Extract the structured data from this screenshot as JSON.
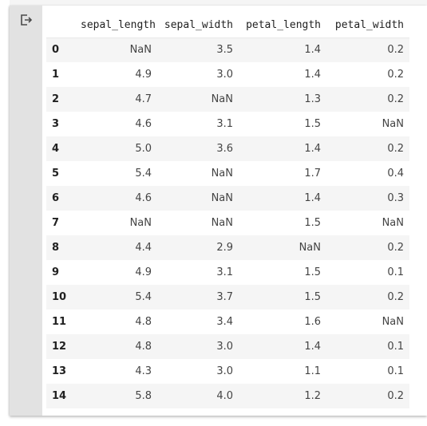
{
  "output_icon": "output-arrow-icon",
  "table": {
    "columns": [
      "",
      "sepal_length",
      "sepal_width",
      "petal_length",
      "petal_width"
    ],
    "rows": [
      [
        "0",
        "NaN",
        "3.5",
        "1.4",
        "0.2"
      ],
      [
        "1",
        "4.9",
        "3.0",
        "1.4",
        "0.2"
      ],
      [
        "2",
        "4.7",
        "NaN",
        "1.3",
        "0.2"
      ],
      [
        "3",
        "4.6",
        "3.1",
        "1.5",
        "NaN"
      ],
      [
        "4",
        "5.0",
        "3.6",
        "1.4",
        "0.2"
      ],
      [
        "5",
        "5.4",
        "NaN",
        "1.7",
        "0.4"
      ],
      [
        "6",
        "4.6",
        "NaN",
        "1.4",
        "0.3"
      ],
      [
        "7",
        "NaN",
        "NaN",
        "1.5",
        "NaN"
      ],
      [
        "8",
        "4.4",
        "2.9",
        "NaN",
        "0.2"
      ],
      [
        "9",
        "4.9",
        "3.1",
        "1.5",
        "0.1"
      ],
      [
        "10",
        "5.4",
        "3.7",
        "1.5",
        "0.2"
      ],
      [
        "11",
        "4.8",
        "3.4",
        "1.6",
        "NaN"
      ],
      [
        "12",
        "4.8",
        "3.0",
        "1.4",
        "0.1"
      ],
      [
        "13",
        "4.3",
        "3.0",
        "1.1",
        "0.1"
      ],
      [
        "14",
        "5.8",
        "4.0",
        "1.2",
        "0.2"
      ]
    ]
  }
}
